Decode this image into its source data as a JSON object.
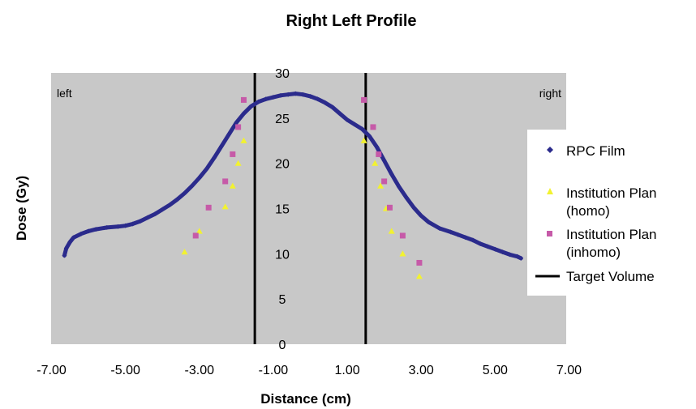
{
  "chart_data": {
    "type": "scatter",
    "title": "Right Left Profile",
    "xlabel": "Distance (cm)",
    "ylabel": "Dose (Gy)",
    "xlim": [
      -7,
      7
    ],
    "ylim": [
      0,
      30
    ],
    "x_ticks": [
      "-7.00",
      "-5.00",
      "-3.00",
      "-1.00",
      "1.00",
      "3.00",
      "5.00",
      "7.00"
    ],
    "y_ticks": [
      "0",
      "5",
      "10",
      "15",
      "20",
      "25",
      "30"
    ],
    "annotations": {
      "left": "left",
      "right": "right"
    },
    "grid": false,
    "legend_position": "right",
    "plot_background": "#c8c8c8",
    "series": [
      {
        "name": "RPC Film",
        "color": "#2b2b8c",
        "marker": "diamond",
        "x": [
          -6.65,
          -6.6,
          -6.5,
          -6.4,
          -6.2,
          -6.0,
          -5.8,
          -5.5,
          -5.2,
          -5.0,
          -4.8,
          -4.6,
          -4.4,
          -4.2,
          -4.0,
          -3.8,
          -3.6,
          -3.4,
          -3.2,
          -3.0,
          -2.8,
          -2.6,
          -2.4,
          -2.2,
          -2.0,
          -1.8,
          -1.6,
          -1.4,
          -1.2,
          -1.0,
          -0.8,
          -0.6,
          -0.4,
          -0.2,
          0.0,
          0.2,
          0.4,
          0.6,
          0.8,
          1.0,
          1.2,
          1.4,
          1.6,
          1.8,
          2.0,
          2.2,
          2.4,
          2.6,
          2.8,
          3.0,
          3.2,
          3.5,
          3.8,
          4.0,
          4.2,
          4.4,
          4.6,
          4.8,
          5.0,
          5.2,
          5.4,
          5.6,
          5.7
        ],
        "y": [
          9.8,
          10.6,
          11.3,
          11.8,
          12.2,
          12.5,
          12.7,
          12.9,
          13.0,
          13.1,
          13.3,
          13.6,
          14.0,
          14.4,
          14.9,
          15.4,
          16.0,
          16.7,
          17.5,
          18.4,
          19.4,
          20.6,
          21.9,
          23.2,
          24.5,
          25.5,
          26.3,
          26.8,
          27.1,
          27.3,
          27.5,
          27.6,
          27.7,
          27.6,
          27.4,
          27.1,
          26.7,
          26.2,
          25.5,
          24.8,
          24.3,
          23.8,
          23.0,
          21.8,
          20.3,
          18.8,
          17.4,
          16.2,
          15.1,
          14.2,
          13.5,
          12.8,
          12.4,
          12.1,
          11.8,
          11.5,
          11.1,
          10.8,
          10.5,
          10.2,
          9.9,
          9.7,
          9.5
        ]
      },
      {
        "name": "Institution Plan (homo)",
        "color": "#f2f230",
        "marker": "triangle",
        "x": [
          -3.4,
          -3.0,
          -2.3,
          -2.1,
          -1.95,
          -1.8,
          1.45,
          1.75,
          1.9,
          2.05,
          2.2,
          2.5,
          2.95
        ],
        "y": [
          10.2,
          12.5,
          15.2,
          17.5,
          20.0,
          22.5,
          22.5,
          20.0,
          17.5,
          15.0,
          12.5,
          10.0,
          7.5
        ]
      },
      {
        "name": "Institution Plan (inhomo)",
        "color": "#c65aa8",
        "marker": "square",
        "x": [
          -3.1,
          -2.75,
          -2.3,
          -2.1,
          -1.95,
          -1.8,
          1.45,
          1.7,
          1.85,
          2.0,
          2.15,
          2.5,
          2.95
        ],
        "y": [
          12.0,
          15.1,
          18.0,
          21.0,
          24.0,
          27.0,
          27.0,
          24.0,
          21.0,
          18.0,
          15.1,
          12.0,
          9.0
        ]
      }
    ],
    "target_volume": {
      "name": "Target Volume",
      "color": "#000000",
      "x": [
        -1.5,
        1.5
      ]
    }
  }
}
